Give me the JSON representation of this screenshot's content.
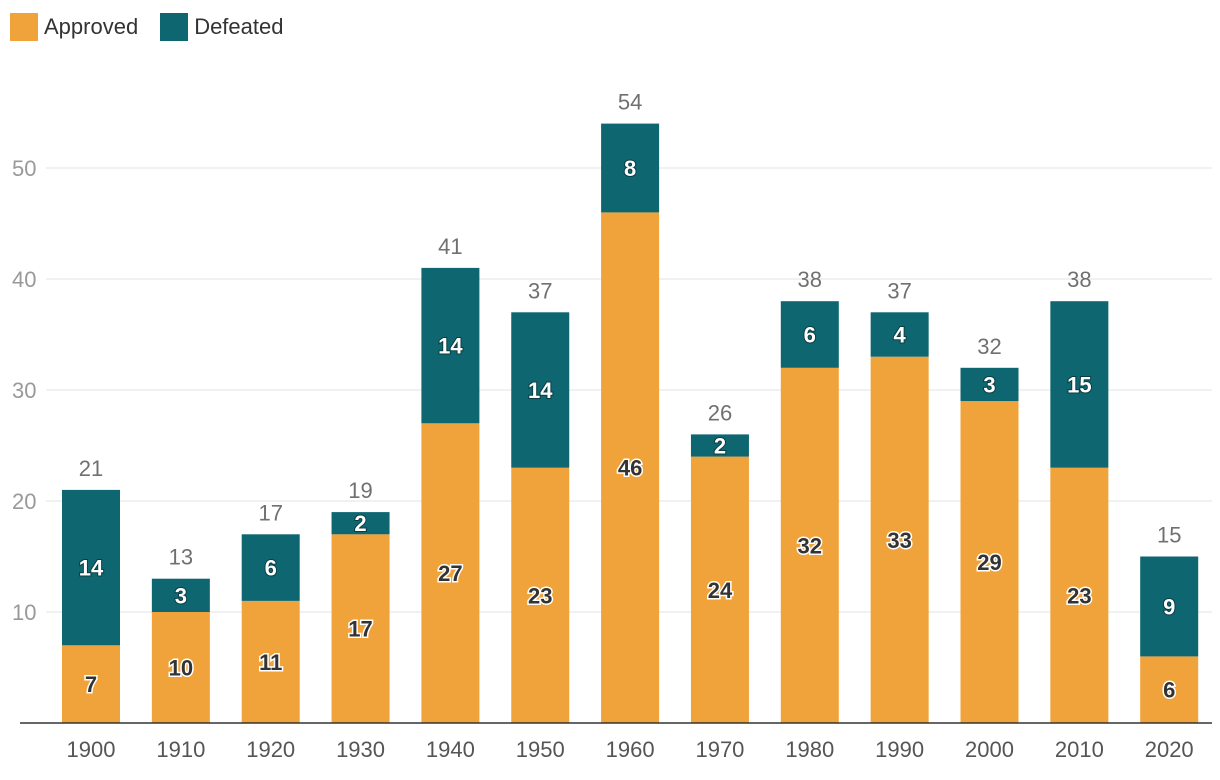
{
  "chart_data": {
    "type": "bar",
    "stacked": true,
    "categories": [
      "1900",
      "1910",
      "1920",
      "1930",
      "1940",
      "1950",
      "1960",
      "1970",
      "1980",
      "1990",
      "2000",
      "2010",
      "2020"
    ],
    "series": [
      {
        "name": "Approved",
        "color": "#F0A33A",
        "values": [
          7,
          10,
          11,
          17,
          27,
          23,
          46,
          24,
          32,
          33,
          29,
          23,
          6
        ]
      },
      {
        "name": "Defeated",
        "color": "#0E6670",
        "values": [
          14,
          3,
          6,
          2,
          14,
          14,
          8,
          2,
          6,
          4,
          3,
          15,
          9
        ]
      }
    ],
    "totals": [
      21,
      13,
      17,
      19,
      41,
      37,
      54,
      26,
      38,
      37,
      32,
      38,
      15
    ],
    "yticks": [
      10,
      20,
      30,
      40,
      50
    ],
    "ylim": [
      0,
      59
    ],
    "grid": true,
    "legend_position": "top-left",
    "title": "",
    "xlabel": "",
    "ylabel": ""
  },
  "legend": {
    "approved": "Approved",
    "defeated": "Defeated"
  }
}
